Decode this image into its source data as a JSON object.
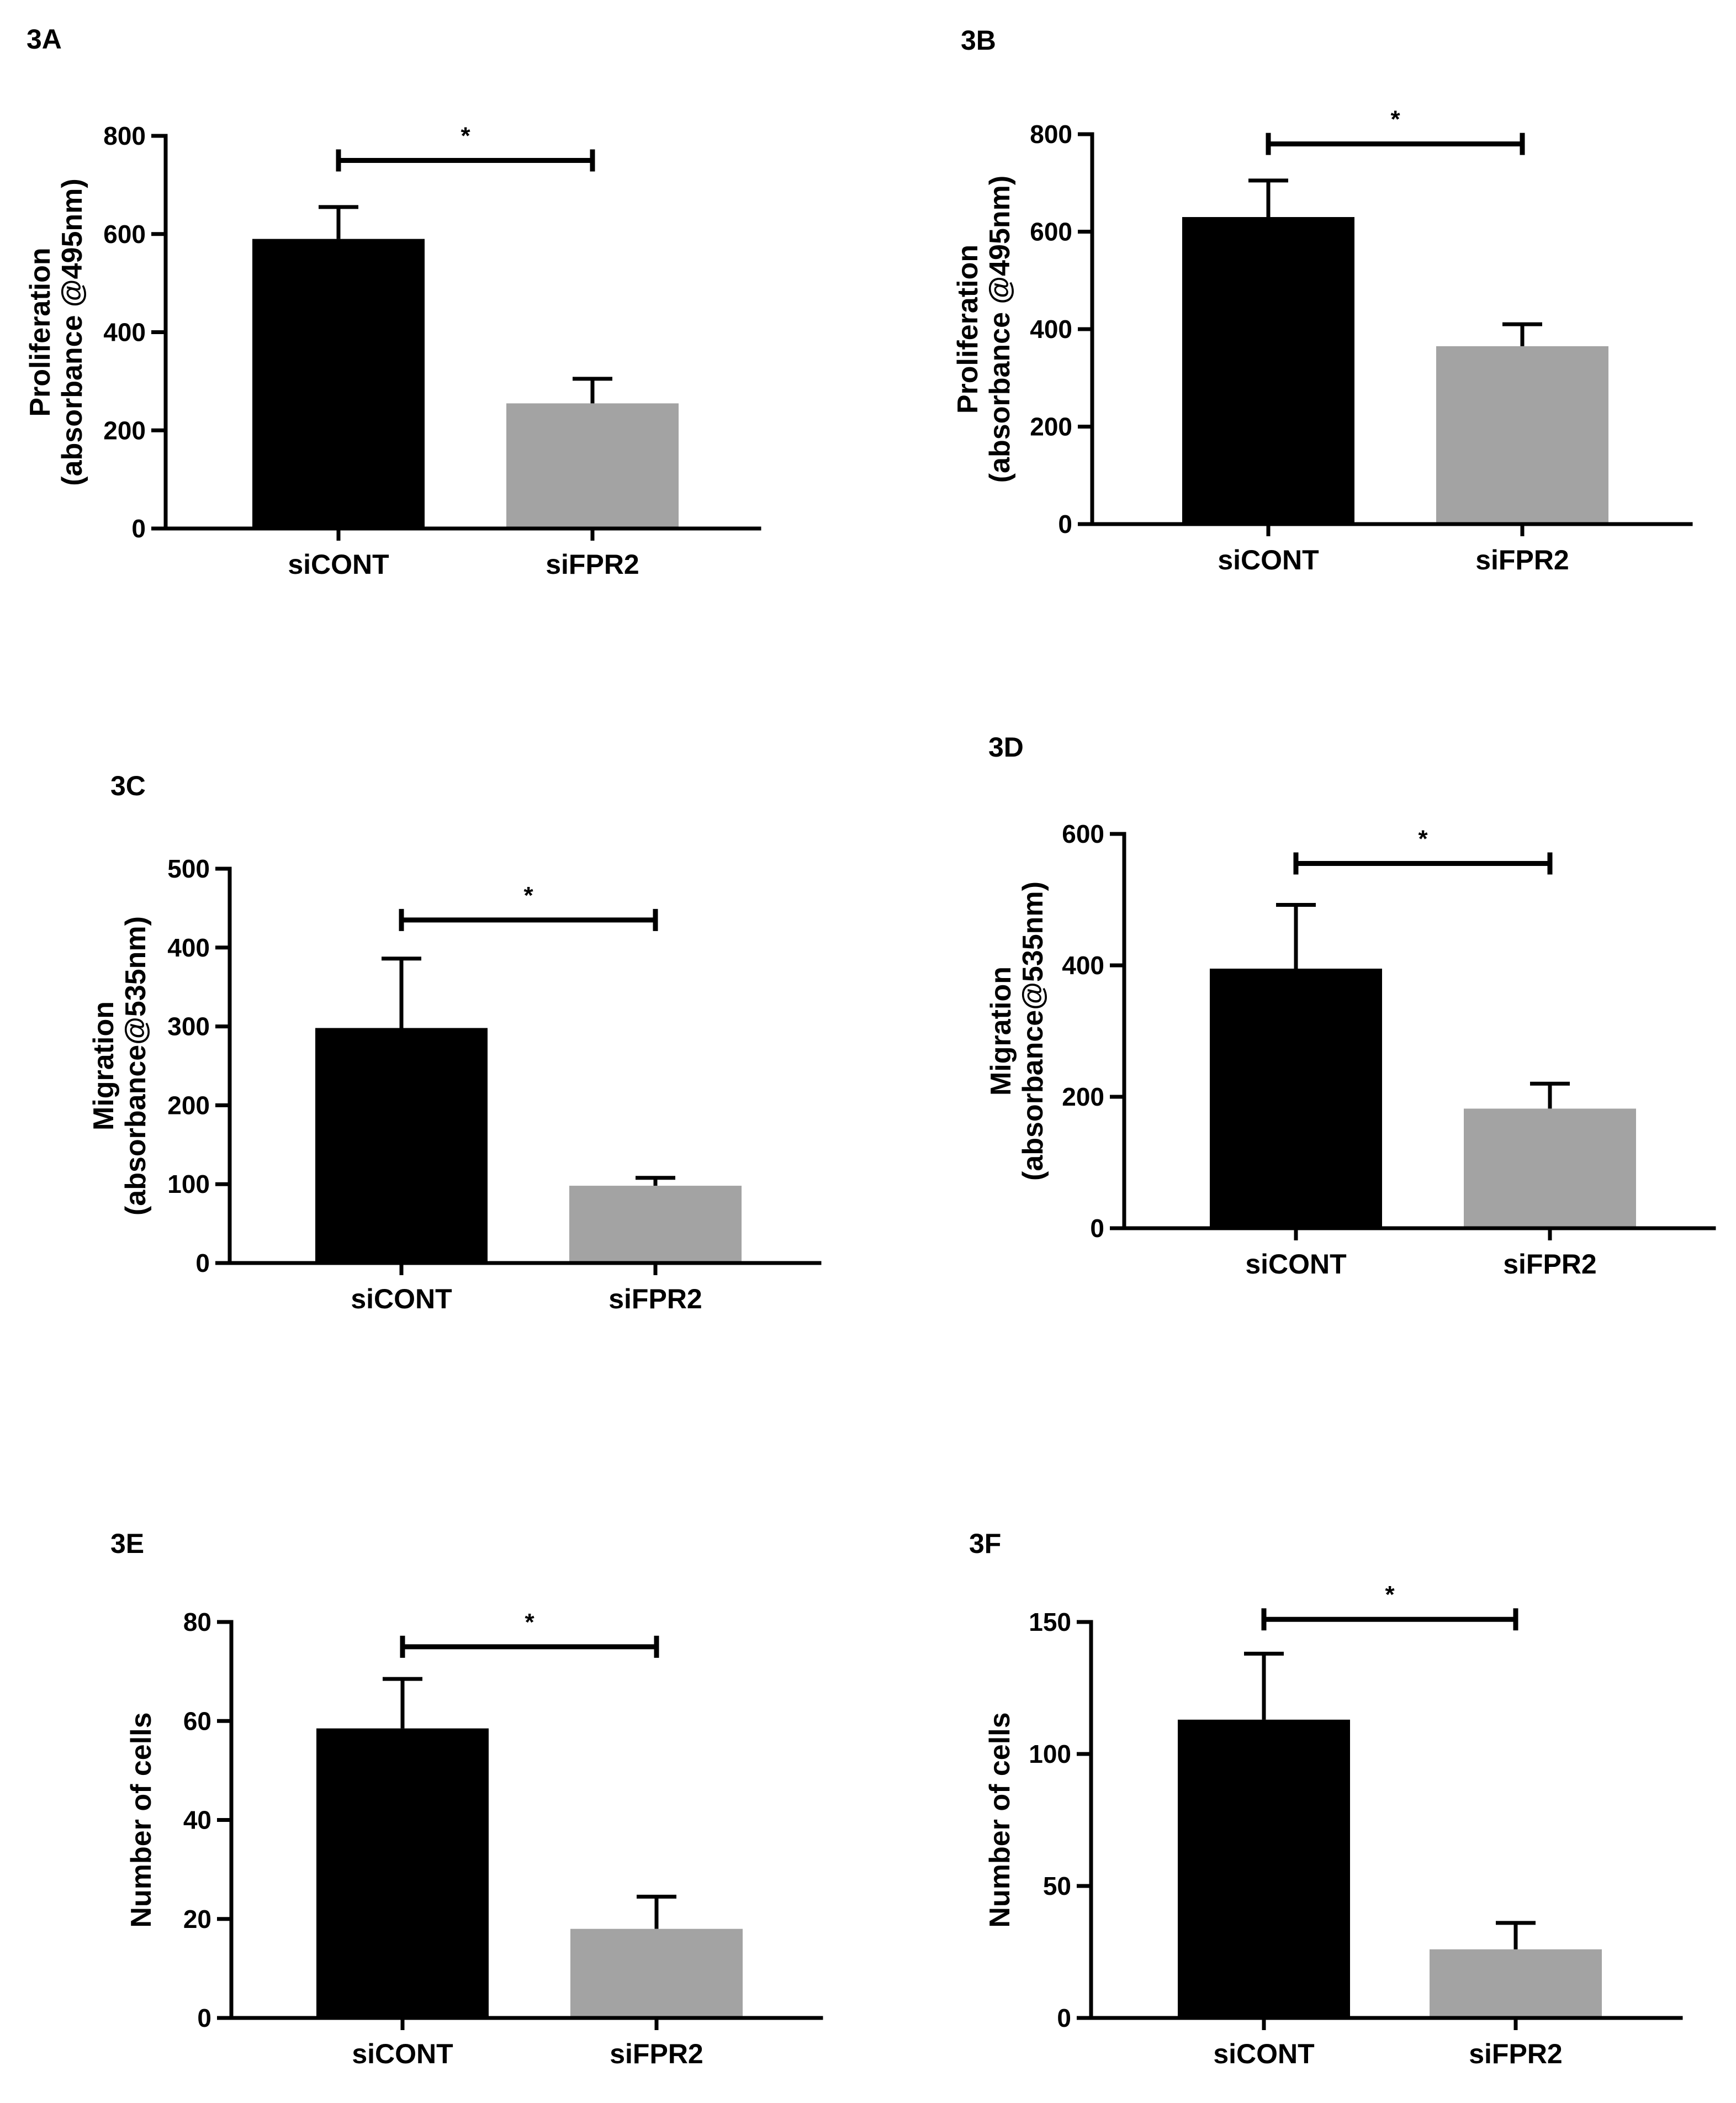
{
  "figure": "FPR2 knockdown bar charts",
  "colors": {
    "control": "#000000",
    "knockdown": "#a3a3a3",
    "axis": "#000000"
  },
  "chart_data": [
    {
      "id": "3A",
      "type": "bar",
      "title": "3A",
      "categories": [
        "siCONT",
        "siFPR2"
      ],
      "values": [
        590,
        255
      ],
      "errors": [
        65,
        50
      ],
      "ylabel_lines": [
        "Proliferation",
        "(absorbance @495nm)"
      ],
      "ylim": [
        0,
        800
      ],
      "yticks": [
        0,
        200,
        400,
        600,
        800
      ],
      "ytick_labels": [
        "0",
        "200",
        "400",
        "600",
        "800"
      ],
      "significance": {
        "pair": [
          0,
          1
        ],
        "level": 750,
        "label": "*"
      }
    },
    {
      "id": "3B",
      "type": "bar",
      "title": "3B",
      "categories": [
        "siCONT",
        "siFPR2"
      ],
      "values": [
        630,
        365
      ],
      "errors": [
        75,
        45
      ],
      "ylabel_lines": [
        "Proliferation",
        "(absorbance @495nm)"
      ],
      "ylim": [
        0,
        800
      ],
      "yticks": [
        0,
        200,
        400,
        600,
        800
      ],
      "ytick_labels": [
        "0",
        "200",
        "400",
        "600",
        "800"
      ],
      "significance": {
        "pair": [
          0,
          1
        ],
        "level": 780,
        "label": "*"
      }
    },
    {
      "id": "3C",
      "type": "bar",
      "title": "3C",
      "categories": [
        "siCONT",
        "siFPR2"
      ],
      "values": [
        298,
        98
      ],
      "errors": [
        88,
        10
      ],
      "ylabel_lines": [
        "Migration",
        "(absorbance@535nm)"
      ],
      "ylim": [
        0,
        500
      ],
      "yticks": [
        0,
        100,
        200,
        300,
        400,
        500
      ],
      "ytick_labels": [
        "0",
        "100",
        "200",
        "300",
        "400",
        "500"
      ],
      "significance": {
        "pair": [
          0,
          1
        ],
        "level": 435,
        "label": "*"
      }
    },
    {
      "id": "3D",
      "type": "bar",
      "title": "3D",
      "categories": [
        "siCONT",
        "siFPR2"
      ],
      "values": [
        395,
        182
      ],
      "errors": [
        97,
        38
      ],
      "ylabel_lines": [
        "Migration",
        "(absorbance@535nm)"
      ],
      "ylim": [
        0,
        600
      ],
      "yticks": [
        0,
        200,
        400,
        600
      ],
      "ytick_labels": [
        "0",
        "200",
        "400",
        "600"
      ],
      "significance": {
        "pair": [
          0,
          1
        ],
        "level": 555,
        "label": "*"
      }
    },
    {
      "id": "3E",
      "type": "bar",
      "title": "3E",
      "categories": [
        "siCONT",
        "siFPR2"
      ],
      "values": [
        58.5,
        18
      ],
      "errors": [
        10,
        6.5
      ],
      "ylabel_lines": [
        "Number of cells"
      ],
      "ylim": [
        0,
        80
      ],
      "yticks": [
        0,
        20,
        40,
        60,
        80
      ],
      "ytick_labels": [
        "0",
        "20",
        "40",
        "60",
        "80"
      ],
      "significance": {
        "pair": [
          0,
          1
        ],
        "level": 75,
        "label": "*"
      }
    },
    {
      "id": "3F",
      "type": "bar",
      "title": "3F",
      "categories": [
        "siCONT",
        "siFPR2"
      ],
      "values": [
        113,
        26
      ],
      "errors": [
        25,
        10
      ],
      "ylabel_lines": [
        "Number of cells"
      ],
      "ylim": [
        0,
        150
      ],
      "yticks": [
        0,
        50,
        100,
        150
      ],
      "ytick_labels": [
        "0",
        "50",
        "100",
        "150"
      ],
      "significance": {
        "pair": [
          0,
          1
        ],
        "level": 151,
        "label": "*"
      }
    }
  ]
}
